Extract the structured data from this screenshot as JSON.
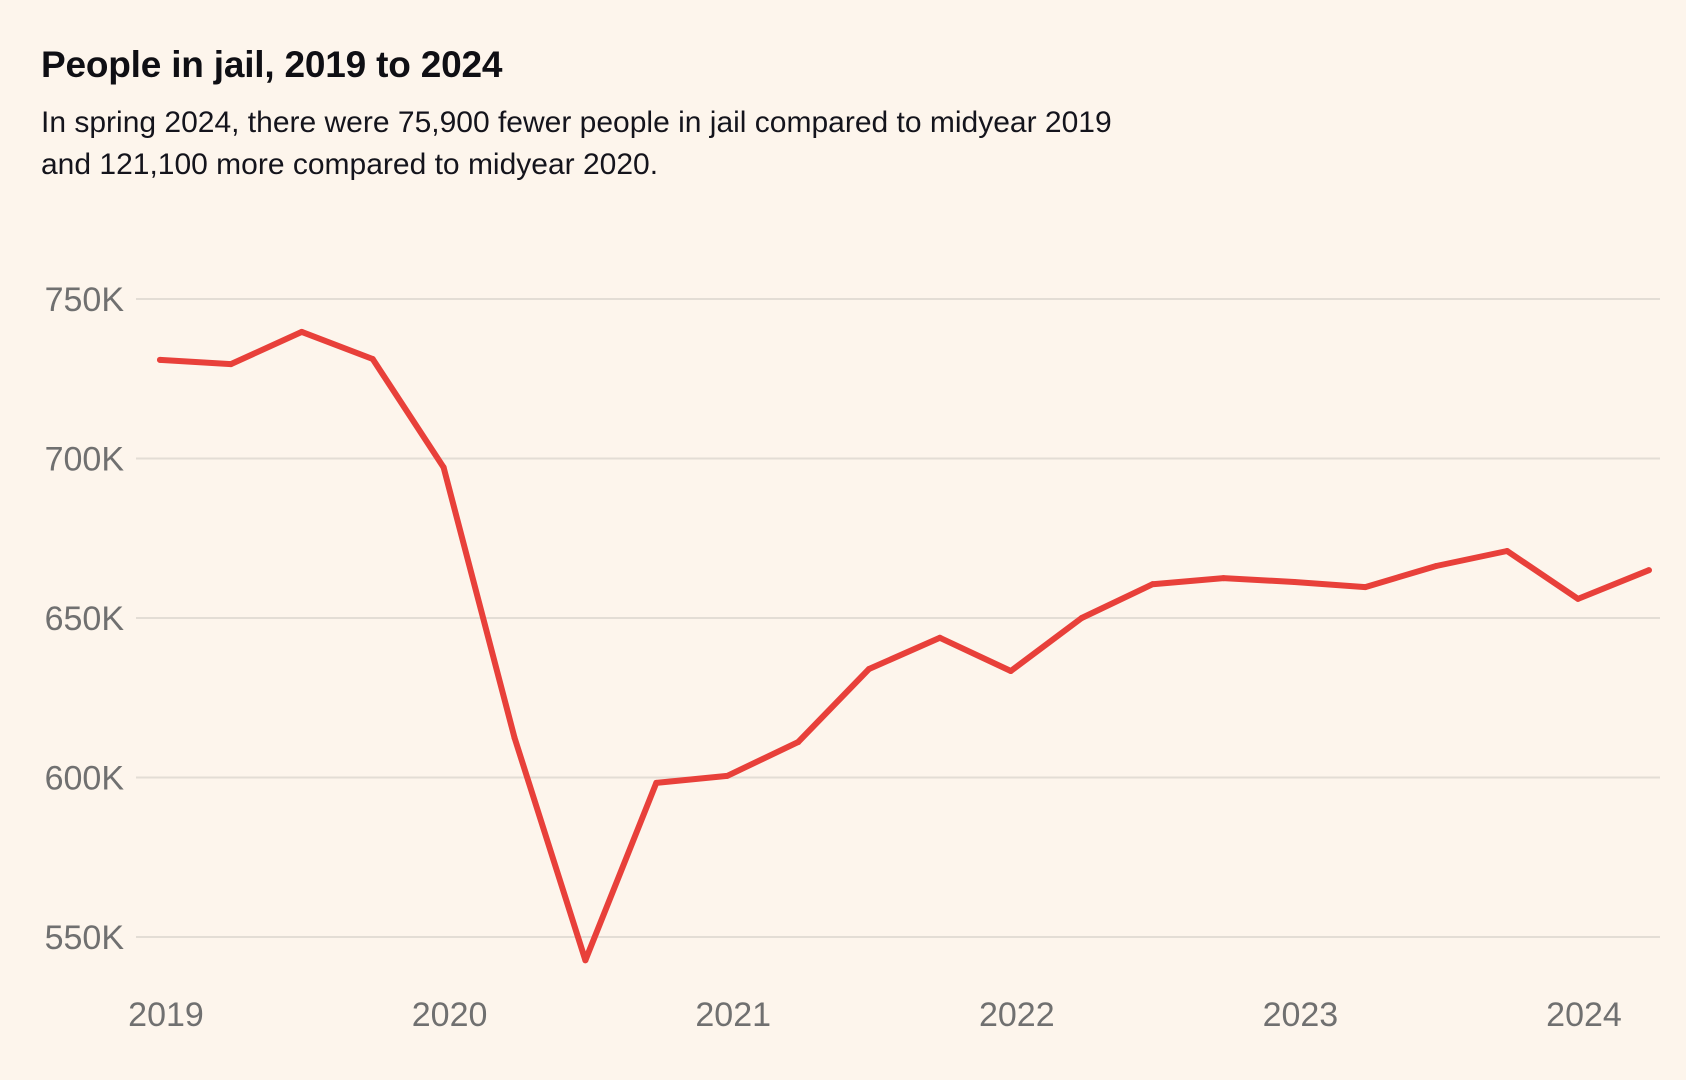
{
  "header": {
    "title": "People in jail, 2019 to 2024",
    "subtitle_lines": [
      "In spring 2024, there were 75,900 fewer people in jail compared to midyear 2019",
      "and 121,100 more compared to midyear 2020."
    ]
  },
  "colors": {
    "background": "#FDF5EC",
    "line": "#E8403A",
    "grid": "#E3DDD5",
    "axis_text": "#707070"
  },
  "chart_data": {
    "type": "line",
    "title": "People in jail, 2019 to 2024",
    "subtitle": "In spring 2024, there were 75,900 fewer people in jail compared to midyear 2019 and 121,100 more compared to midyear 2020.",
    "xlabel": "",
    "ylabel": "",
    "x": [
      "2019 Q1",
      "2019 Q2",
      "2019 Q3",
      "2019 Q4",
      "2020 Q1",
      "2020 Q2",
      "2020 Q3",
      "2020 Q4",
      "2021 Q1",
      "2021 Q2",
      "2021 Q3",
      "2021 Q4",
      "2022 Q1",
      "2022 Q2",
      "2022 Q3",
      "2022 Q4",
      "2023 Q1",
      "2023 Q2",
      "2023 Q3",
      "2023 Q4",
      "2024 Q1",
      "2024 Q2"
    ],
    "series": [
      {
        "name": "People in jail",
        "values": [
          730900,
          729600,
          739700,
          731200,
          697200,
          612500,
          542700,
          598300,
          600500,
          611100,
          634000,
          643800,
          633400,
          650000,
          660600,
          662500,
          661300,
          659700,
          666300,
          671000,
          656000,
          665000
        ]
      }
    ],
    "ylim": [
      550000,
      750000
    ],
    "yticks": [
      750000,
      700000,
      650000,
      600000,
      550000
    ],
    "ytick_labels": [
      "750K",
      "700K",
      "650K",
      "600K",
      "550K"
    ],
    "xtick_labels": [
      "2019",
      "2020",
      "2021",
      "2022",
      "2023",
      "2024"
    ],
    "xtick_positions": [
      "2019 Q1",
      "2020 Q1",
      "2021 Q1",
      "2022 Q1",
      "2023 Q1",
      "2024 Q1"
    ],
    "grid": "horizontal",
    "legend": "none"
  }
}
